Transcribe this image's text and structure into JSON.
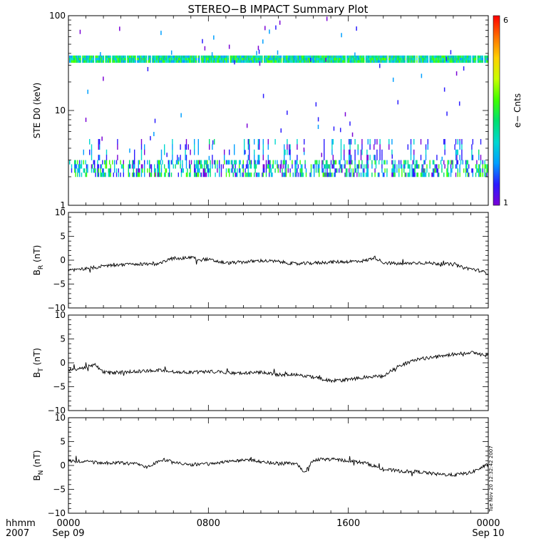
{
  "title": "STEREO−B IMPACT Summary Plot",
  "footer": {
    "time_label": "hhmm",
    "year_label": "2007",
    "x_ticks": [
      {
        "t": 0,
        "hhmm": "0000",
        "date": "Sep 09"
      },
      {
        "t": 8,
        "hhmm": "0800",
        "date": ""
      },
      {
        "t": 16,
        "hhmm": "1600",
        "date": ""
      },
      {
        "t": 24,
        "hhmm": "0000",
        "date": "Sep 10"
      }
    ],
    "timestamp": "Tue Nov 20 12:32:42 2007"
  },
  "colorbar": {
    "label": "e− Cnts",
    "min_label": "1",
    "max_label": "6",
    "range": [
      1,
      6
    ],
    "colors": [
      "#7a00d6",
      "#2b1cff",
      "#00a0ff",
      "#00d8d0",
      "#00e070",
      "#40ff00",
      "#c8ff00",
      "#ffd000",
      "#ff7000",
      "#ff0000"
    ]
  },
  "chart_data": [
    {
      "type": "heatmap",
      "ylabel": "STE D0 (keV)",
      "yscale": "log",
      "ylim": [
        1,
        100
      ],
      "y_tick_labels": [
        "1",
        "10",
        "100"
      ],
      "xlim": [
        0,
        24
      ],
      "bands": [
        {
          "energy_keV": [
            2.0,
            3.0
          ],
          "coverage": "dense",
          "counts": [
            1,
            4
          ]
        },
        {
          "energy_keV": [
            3.0,
            5.0
          ],
          "coverage": "sparse",
          "counts": [
            1,
            3
          ]
        },
        {
          "energy_keV": [
            32,
            38
          ],
          "coverage": "continuous",
          "counts": [
            2,
            4
          ]
        }
      ]
    },
    {
      "type": "line",
      "ylabel": "B_R (nT)",
      "ylabel_main": "B",
      "ylabel_sub": "R",
      "ylabel_unit": " (nT)",
      "ylim": [
        -10,
        10
      ],
      "y_tick_labels": [
        "10",
        "5",
        "0",
        "−5",
        "−10"
      ],
      "xlim": [
        0,
        24
      ],
      "x": [
        0,
        1,
        1.5,
        2,
        3,
        4,
        5,
        5.5,
        6,
        7,
        8,
        9,
        10,
        11,
        12,
        13,
        14,
        15,
        16,
        17,
        17.5,
        18,
        19,
        20,
        21,
        22,
        22.5,
        23,
        23.5,
        24
      ],
      "y": [
        -2.2,
        -1.8,
        -1.5,
        -1.2,
        -1.0,
        -0.8,
        -0.9,
        -0.2,
        0.4,
        0.5,
        0.1,
        -0.6,
        -0.4,
        -0.1,
        -0.3,
        -0.8,
        -0.6,
        -0.4,
        -0.3,
        -0.1,
        0.6,
        -0.5,
        -0.8,
        -0.5,
        -0.7,
        -0.9,
        -1.5,
        -1.8,
        -2.2,
        -2.8
      ]
    },
    {
      "type": "line",
      "ylabel": "B_T (nT)",
      "ylabel_main": "B",
      "ylabel_sub": "T",
      "ylabel_unit": " (nT)",
      "ylim": [
        -10,
        10
      ],
      "y_tick_labels": [
        "10",
        "5",
        "0",
        "−5",
        "−10"
      ],
      "xlim": [
        0,
        24
      ],
      "x": [
        0,
        1,
        1.5,
        2,
        3,
        4,
        5,
        6,
        7,
        8,
        9,
        10,
        11,
        12,
        13,
        14,
        15,
        16,
        17,
        18,
        18.5,
        19,
        20,
        21,
        22,
        23,
        24
      ],
      "y": [
        -1.5,
        -1.0,
        -0.3,
        -2.0,
        -2.0,
        -1.8,
        -1.5,
        -1.8,
        -2.0,
        -1.8,
        -2.0,
        -2.2,
        -2.0,
        -2.5,
        -2.4,
        -3.0,
        -3.8,
        -3.5,
        -3.0,
        -2.8,
        -1.5,
        -0.5,
        0.8,
        1.2,
        1.8,
        2.2,
        1.5
      ]
    },
    {
      "type": "line",
      "ylabel": "B_N (nT)",
      "ylabel_main": "B",
      "ylabel_sub": "N",
      "ylabel_unit": " (nT)",
      "ylim": [
        -10,
        10
      ],
      "y_tick_labels": [
        "10",
        "5",
        "0",
        "−5",
        "−10"
      ],
      "xlim": [
        0,
        24
      ],
      "x": [
        0,
        1,
        2,
        3,
        4,
        4.5,
        5,
        5.5,
        6,
        7,
        8,
        9,
        10,
        11,
        12,
        13,
        13.5,
        14,
        15,
        16,
        17,
        18,
        19,
        20,
        21,
        22,
        23,
        24
      ],
      "y": [
        1.0,
        0.8,
        0.5,
        0.6,
        0.2,
        -0.5,
        0.5,
        1.2,
        0.6,
        0.2,
        0.3,
        0.8,
        1.2,
        0.8,
        0.4,
        0.5,
        -1.5,
        1.2,
        1.3,
        1.0,
        0.5,
        -0.8,
        -1.2,
        -1.3,
        -1.8,
        -2.0,
        -1.5,
        0.2
      ]
    }
  ]
}
